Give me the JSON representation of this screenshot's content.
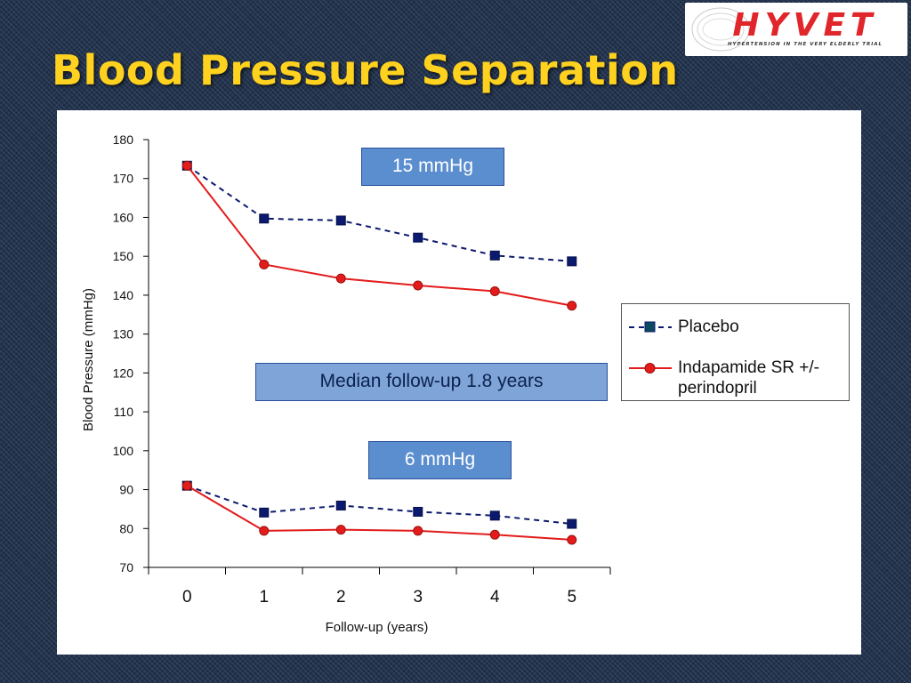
{
  "slide": {
    "title": "Blood Pressure Separation"
  },
  "logo": {
    "text": "HYVET",
    "tagline": "HYPERTENSION IN THE VERY ELDERLY TRIAL"
  },
  "callouts": {
    "upper": "15 mmHg",
    "lower": "6 mmHg",
    "median": "Median follow-up 1.8 years"
  },
  "chart_data": {
    "type": "line",
    "title": "",
    "xlabel": "Follow-up (years)",
    "ylabel": "Blood Pressure (mmHg)",
    "x": [
      0,
      1,
      2,
      3,
      4,
      5
    ],
    "xlim": [
      -0.5,
      5.5
    ],
    "ylim": [
      70,
      180
    ],
    "yticks": [
      70,
      80,
      90,
      100,
      110,
      120,
      130,
      140,
      150,
      160,
      170,
      180
    ],
    "grid": false,
    "legend_position": "right",
    "series": [
      {
        "name": "Placebo",
        "group": "systolic",
        "values": [
          173.3,
          159.7,
          159.2,
          154.8,
          150.2,
          148.7
        ],
        "color": "#0b1a6e",
        "marker": "square",
        "dash": "dashed"
      },
      {
        "name": "Indapamide SR +/- perindopril",
        "group": "systolic",
        "values": [
          173.3,
          147.9,
          144.3,
          142.5,
          141.0,
          137.3
        ],
        "color": "#e31b1b",
        "marker": "circle",
        "dash": "solid"
      },
      {
        "name": "Placebo",
        "group": "diastolic",
        "values": [
          91.0,
          84.1,
          85.9,
          84.3,
          83.3,
          81.2
        ],
        "color": "#0b1a6e",
        "marker": "square",
        "dash": "dashed"
      },
      {
        "name": "Indapamide SR +/- perindopril",
        "group": "diastolic",
        "values": [
          91.0,
          79.4,
          79.7,
          79.4,
          78.4,
          77.1
        ],
        "color": "#e31b1b",
        "marker": "circle",
        "dash": "solid"
      }
    ],
    "legend": [
      {
        "label": "Placebo",
        "color": "#0b1a6e",
        "marker": "square",
        "dash": "dashed"
      },
      {
        "label": "Indapamide SR +/- perindopril",
        "color": "#e31b1b",
        "marker": "circle",
        "dash": "solid"
      }
    ]
  }
}
